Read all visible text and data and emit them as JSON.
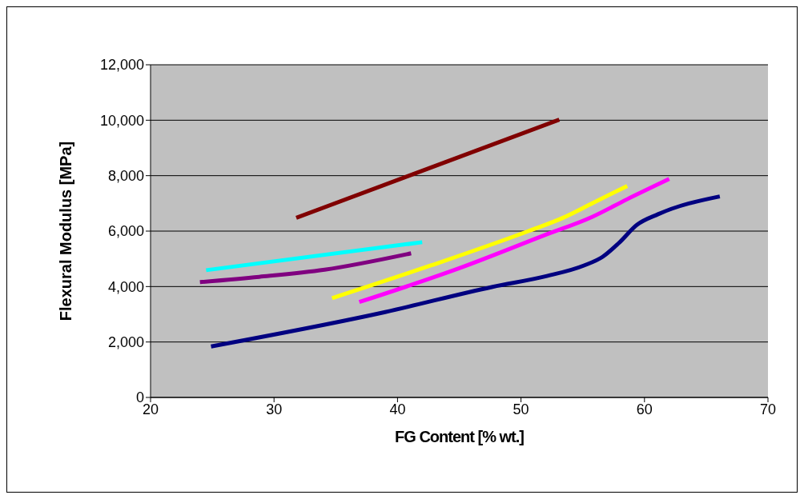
{
  "chart_data": {
    "type": "line",
    "xlabel": "FG Content [% wt.]",
    "ylabel": "Flexural Modulus [MPa]",
    "xlim": [
      20,
      70
    ],
    "xticks": [
      20,
      30,
      40,
      50,
      60,
      70
    ],
    "ylim": [
      0,
      12000
    ],
    "yticks": [
      0,
      {
        "value": 2000,
        "label": "2,000"
      },
      {
        "value": 4000,
        "label": "4,000"
      },
      {
        "value": 6000,
        "label": "6,000"
      },
      {
        "value": 8000,
        "label": "8,000"
      },
      {
        "value": 10000,
        "label": "10,000"
      },
      {
        "value": 12000,
        "label": "12,000"
      }
    ],
    "grid": "y",
    "marker": "none",
    "line_style": "solid",
    "series": [
      {
        "color": "#800000",
        "x": [
          31.8,
          53.1
        ],
        "values": [
          6480,
          10020
        ]
      },
      {
        "color": "#00ffff",
        "x": [
          24.5,
          42.0
        ],
        "values": [
          4590,
          5600
        ]
      },
      {
        "color": "#800080",
        "x": [
          24.0,
          28.8,
          34.1,
          41.1
        ],
        "values": [
          4160,
          4350,
          4610,
          5200
        ]
      },
      {
        "color": "#ffff00",
        "x": [
          34.7,
          42.7,
          50.6,
          53.4,
          55.8,
          58.6
        ],
        "values": [
          3580,
          4760,
          6000,
          6480,
          7010,
          7630
        ]
      },
      {
        "color": "#ff00ff",
        "x": [
          36.9,
          45.0,
          51.9,
          55.8,
          58.6,
          62.0
        ],
        "values": [
          3440,
          4660,
          5850,
          6520,
          7150,
          7880
        ]
      },
      {
        "color": "#000080",
        "x": [
          24.9,
          39.0,
          47.7,
          52.1,
          55.1,
          56.6,
          57.9,
          59.4,
          61.1,
          66.1
        ],
        "values": [
          1840,
          3080,
          3990,
          4380,
          4760,
          5070,
          5560,
          6230,
          6610,
          7250
        ]
      }
    ]
  }
}
